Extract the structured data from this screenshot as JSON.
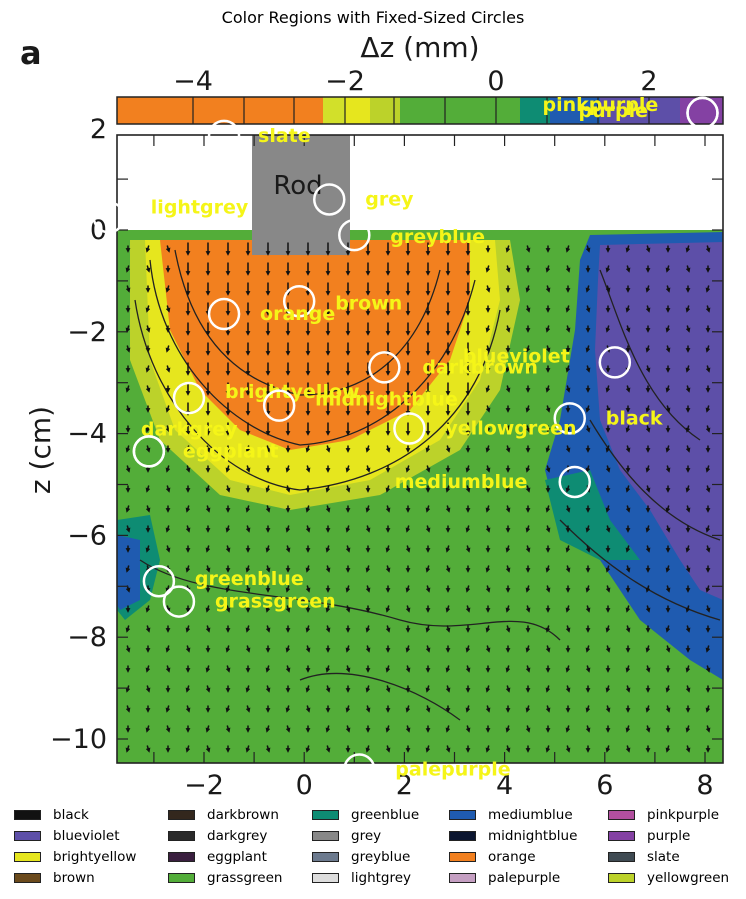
{
  "chart_data": {
    "type": "heatmap",
    "title": "Color Regions with Fixed-Sized Circles",
    "panel_label": "a",
    "colorbar": {
      "label": "Δz (mm)",
      "ticks": [
        "−4",
        "−2",
        "0",
        "2"
      ]
    },
    "xlabel": "",
    "ylabel": "z (cm)",
    "x_ticks": [
      "−2",
      "0",
      "2",
      "4",
      "6",
      "8"
    ],
    "y_ticks": [
      "2",
      "0",
      "−2",
      "−4",
      "−6",
      "−8",
      "−10"
    ],
    "xlim": [
      -3.6,
      8.4
    ],
    "ylim": [
      -10.6,
      2.1
    ],
    "rod_label": "Rod",
    "circles": [
      {
        "name": "slate",
        "x": -1.6,
        "y": 1.85
      },
      {
        "name": "grey",
        "x": 0.5,
        "y": 0.6
      },
      {
        "name": "lightgrey",
        "x": -3.9,
        "y": 0.25
      },
      {
        "name": "greyblue",
        "x": 1.0,
        "y": -0.1
      },
      {
        "name": "brown",
        "x": -0.1,
        "y": -1.4
      },
      {
        "name": "orange",
        "x": -1.6,
        "y": -1.65
      },
      {
        "name": "darkbrown",
        "x": 1.6,
        "y": -2.7
      },
      {
        "name": "blueviolet",
        "x": 6.2,
        "y": -2.6
      },
      {
        "name": "brightyellow",
        "x": -2.3,
        "y": -3.3
      },
      {
        "name": "midnightblue",
        "x": -0.5,
        "y": -3.45
      },
      {
        "name": "black",
        "x": 5.3,
        "y": -3.7
      },
      {
        "name": "yellowgreen",
        "x": 2.1,
        "y": -3.9
      },
      {
        "name": "darkgrey",
        "x": -3.1,
        "y": -4.35
      },
      {
        "name": "eggplant",
        "x": -3.1,
        "y": -4.35
      },
      {
        "name": "mediumblue",
        "x": 5.4,
        "y": -4.95
      },
      {
        "name": "greenblue",
        "x": -2.9,
        "y": -6.9
      },
      {
        "name": "grassgreen",
        "x": -2.5,
        "y": -7.3
      },
      {
        "name": "palepurple",
        "x": 1.1,
        "y": -10.6
      },
      {
        "name": "pinkpurple",
        "x": 7.95,
        "y": 2.3
      },
      {
        "name": "purple",
        "x": 7.95,
        "y": 2.3
      }
    ],
    "legend": [
      {
        "name": "black",
        "color": "#111111"
      },
      {
        "name": "blueviolet",
        "color": "#5d4fa8"
      },
      {
        "name": "brightyellow",
        "color": "#e6e61e"
      },
      {
        "name": "brown",
        "color": "#6b4a1c"
      },
      {
        "name": "darkbrown",
        "color": "#33271d"
      },
      {
        "name": "darkgrey",
        "color": "#2a2a2a"
      },
      {
        "name": "eggplant",
        "color": "#3a1f3f"
      },
      {
        "name": "grassgreen",
        "color": "#53ad39"
      },
      {
        "name": "greenblue",
        "color": "#0e8c73"
      },
      {
        "name": "grey",
        "color": "#888888"
      },
      {
        "name": "greyblue",
        "color": "#6c7a8e"
      },
      {
        "name": "lightgrey",
        "color": "#dddddd"
      },
      {
        "name": "mediumblue",
        "color": "#1f5bb0"
      },
      {
        "name": "midnightblue",
        "color": "#0b1530"
      },
      {
        "name": "orange",
        "color": "#f2801f"
      },
      {
        "name": "palepurple",
        "color": "#c59fc2"
      },
      {
        "name": "pinkpurple",
        "color": "#b24f9f"
      },
      {
        "name": "purple",
        "color": "#8441a3"
      },
      {
        "name": "slate",
        "color": "#3f4a52"
      },
      {
        "name": "yellowgreen",
        "color": "#bcd22a"
      }
    ],
    "label_color": "#f5f518"
  }
}
